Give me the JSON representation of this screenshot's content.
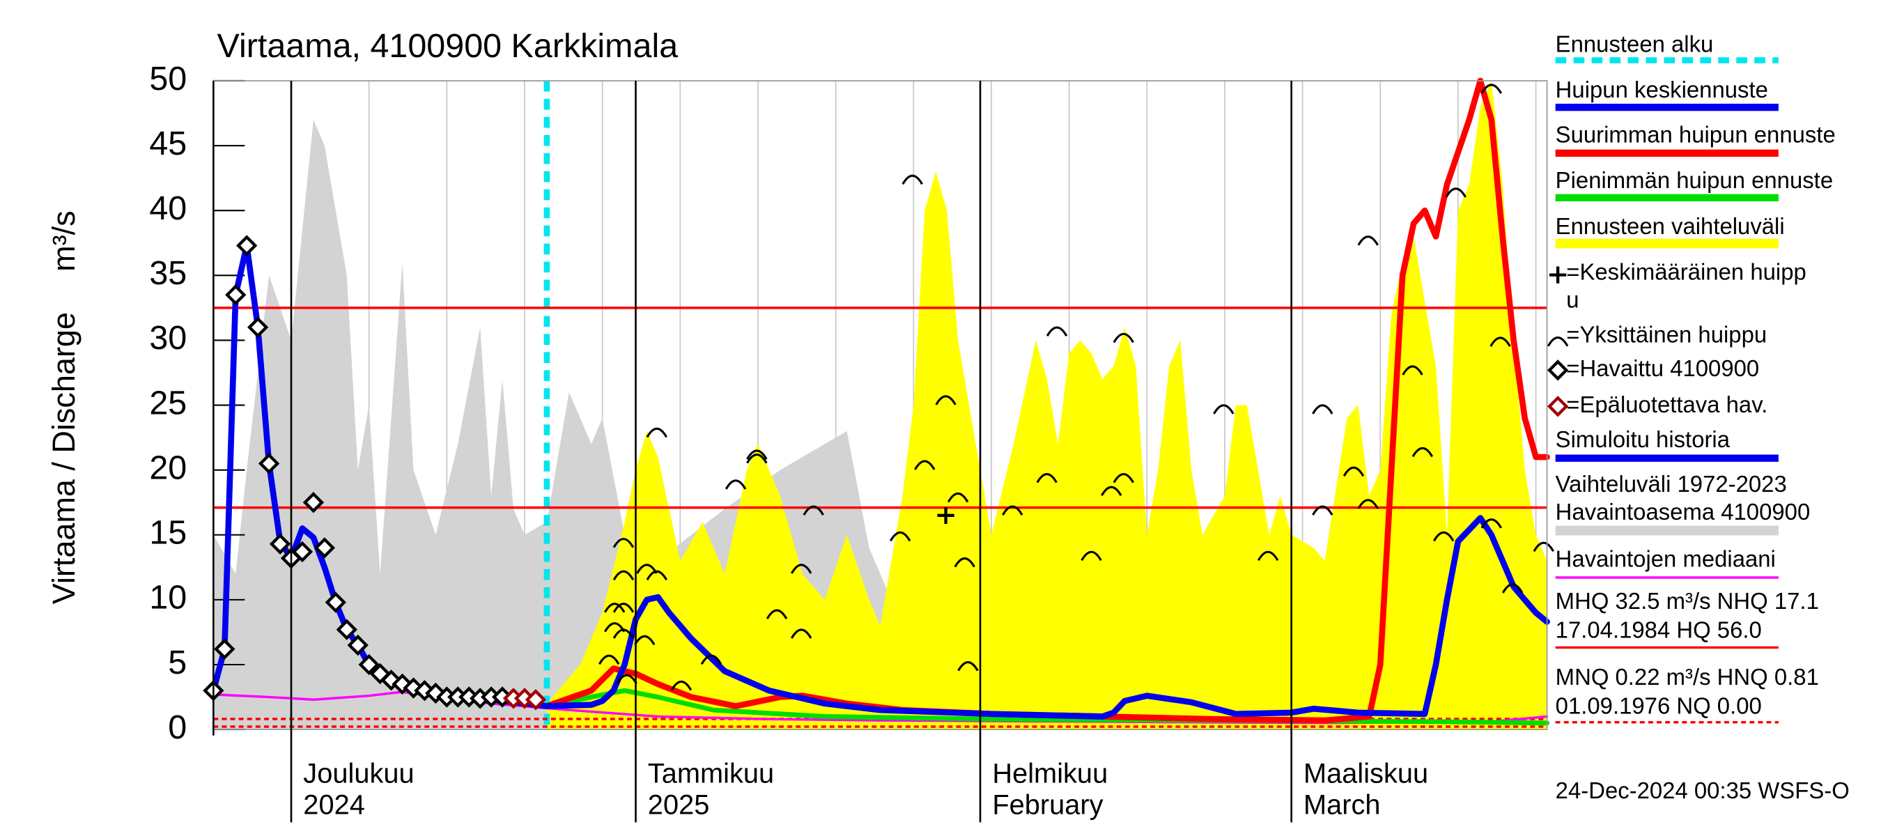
{
  "chart_data": {
    "type": "line",
    "title": "Virtaama, 4100900 Karkkimala",
    "ylabel": "Virtaama / Discharge",
    "yunit": "m³/s",
    "footer": "24-Dec-2024 00:35 WSFS-O",
    "xlim": [
      0,
      120
    ],
    "xticks": [
      {
        "value": 7,
        "label": "Joulukuu",
        "sublabel": "2024"
      },
      {
        "value": 38,
        "label": "Tammikuu",
        "sublabel": "2025"
      },
      {
        "value": 69,
        "label": "Helmikuu",
        "sublabel": "February"
      },
      {
        "value": 97,
        "label": "Maaliskuu",
        "sublabel": "March"
      }
    ],
    "minor_xticks": [
      7,
      14,
      21,
      28,
      35,
      42,
      49,
      56,
      63,
      70,
      77,
      84,
      91,
      98,
      105,
      112,
      119
    ],
    "ylim": [
      0,
      50
    ],
    "yticks": [
      0,
      5,
      10,
      15,
      20,
      25,
      30,
      35,
      40,
      45,
      50
    ],
    "forecast_start": {
      "name": "Ennusteen alku",
      "x": 30,
      "color": "#00e5ee"
    },
    "bands": [
      {
        "name": [
          "Vaihteluväli 1972-2023",
          " Havaintoasema 4100900"
        ],
        "color": "#d3d3d3",
        "x": [
          0,
          2,
          3,
          5,
          7,
          9,
          10,
          12,
          13,
          14,
          15,
          17,
          18,
          20,
          22,
          24,
          25,
          26,
          27,
          28,
          30,
          32,
          34,
          35,
          37,
          40,
          46,
          51,
          55,
          57,
          59,
          62,
          70,
          80,
          90,
          100,
          110,
          120
        ],
        "values": [
          15,
          12,
          20,
          35,
          30,
          47,
          45,
          35,
          20,
          25,
          12,
          36,
          20,
          15,
          22,
          31,
          18,
          27,
          17,
          15,
          16,
          26,
          22,
          24,
          15,
          13,
          17,
          20,
          22,
          23,
          14,
          8,
          6,
          8,
          7,
          5,
          10,
          12
        ]
      },
      {
        "name": "Ennusteen vaihteluväli",
        "color": "#ffff00",
        "x": [
          30,
          33,
          35,
          37,
          38,
          39,
          40,
          42,
          44,
          46,
          48,
          49,
          51,
          53,
          55,
          57,
          59,
          60,
          62,
          63,
          64,
          65,
          66,
          67,
          69,
          70,
          72,
          74,
          75,
          76,
          77,
          78,
          79,
          80,
          81,
          82,
          83,
          84,
          85,
          86,
          87,
          88,
          89,
          91,
          92,
          93,
          95,
          96,
          97,
          99,
          100,
          102,
          103,
          104,
          105,
          106,
          107,
          108,
          109,
          110,
          111,
          112,
          113,
          114,
          115,
          116,
          117,
          118,
          119,
          120
        ],
        "values": [
          2,
          5,
          9,
          16,
          20,
          23,
          21,
          13,
          16,
          12,
          20,
          22,
          18,
          12,
          10,
          15,
          10,
          8,
          18,
          25,
          40,
          43,
          40,
          30,
          20,
          15,
          22,
          30,
          27,
          22,
          29,
          30,
          29,
          27,
          28,
          31,
          28,
          15,
          20,
          28,
          30,
          20,
          15,
          18,
          25,
          25,
          15,
          18,
          15,
          14,
          13,
          24,
          25,
          18,
          20,
          32,
          36,
          38,
          33,
          28,
          15,
          40,
          42,
          48,
          50,
          42,
          30,
          20,
          15,
          13
        ]
      }
    ],
    "series": [
      {
        "name": "Simuloitu historia",
        "color": "#0000ee",
        "x": [
          0,
          1,
          2,
          3,
          4,
          5,
          6,
          7,
          8,
          9,
          10,
          11,
          12,
          13,
          14,
          15,
          16,
          17,
          18,
          20,
          22,
          24,
          26,
          28,
          30
        ],
        "values": [
          3,
          6.2,
          33.5,
          37.3,
          31,
          20.5,
          14.5,
          13.2,
          15.5,
          14.8,
          12.5,
          9.8,
          7.7,
          6.5,
          5,
          4.3,
          3.8,
          3.5,
          3.2,
          2.8,
          2.5,
          2.4,
          2.2,
          2,
          1.8
        ]
      },
      {
        "name": "Huipun keskiennuste",
        "color": "#0000ee",
        "x": [
          30,
          34,
          35,
          36,
          37,
          38,
          39,
          40,
          41,
          43,
          46,
          50,
          55,
          60,
          70,
          80,
          81,
          82,
          84,
          88,
          92,
          97,
          99,
          103,
          109,
          110,
          111,
          112,
          114,
          115,
          117,
          119,
          120
        ],
        "values": [
          1.8,
          1.9,
          2.2,
          3,
          5,
          8.5,
          10,
          10.2,
          9,
          7,
          4.5,
          3,
          2,
          1.5,
          1.2,
          1,
          1.3,
          2.2,
          2.6,
          2.1,
          1.2,
          1.3,
          1.6,
          1.3,
          1.2,
          5,
          10,
          14.5,
          16.3,
          15,
          11,
          9,
          8.3
        ]
      },
      {
        "name": "Suurimman huipun ennuste",
        "color": "#ff0000",
        "x": [
          30,
          34,
          36,
          38,
          40,
          43,
          47,
          51,
          53,
          57,
          62,
          70,
          80,
          90,
          100,
          104,
          105,
          106,
          107,
          108,
          109,
          110,
          111,
          113,
          114,
          115,
          116,
          117,
          118,
          119,
          120
        ],
        "values": [
          1.8,
          3,
          4.7,
          4.3,
          3.5,
          2.5,
          1.8,
          2.5,
          2.6,
          2,
          1.5,
          1.2,
          1,
          0.8,
          0.7,
          1,
          5,
          20,
          35,
          39,
          40,
          38,
          42,
          47,
          50,
          47,
          38,
          30,
          24,
          21,
          21
        ]
      },
      {
        "name": "Pienimmän huipun ennuste",
        "color": "#00dd00",
        "x": [
          30,
          34,
          37,
          40,
          45,
          55,
          70,
          90,
          110,
          120
        ],
        "values": [
          1.8,
          2.5,
          3,
          2.5,
          1.5,
          1,
          0.8,
          0.7,
          0.6,
          0.5
        ]
      },
      {
        "name": "Havaintojen mediaani",
        "color": "#ff00ff",
        "x": [
          0,
          5,
          9,
          14,
          17,
          20,
          25,
          32,
          40,
          50,
          60,
          80,
          100,
          115,
          120
        ],
        "values": [
          2.7,
          2.5,
          2.3,
          2.6,
          2.9,
          2.5,
          2,
          1.5,
          1,
          0.8,
          0.7,
          0.6,
          0.5,
          0.6,
          1
        ]
      }
    ],
    "points": [
      {
        "name": "=Havaittu 4100900",
        "marker": "diamond",
        "color": "#000000",
        "x": [
          0,
          1,
          2,
          3,
          4,
          5,
          6,
          7,
          8,
          9,
          10,
          11,
          12,
          13,
          14,
          15,
          16,
          17,
          18,
          19,
          20,
          21,
          22,
          23,
          24,
          25,
          26
        ],
        "values": [
          3,
          6.2,
          33.5,
          37.3,
          31,
          20.5,
          14.3,
          13.2,
          13.7,
          17.5,
          14,
          9.8,
          7.7,
          6.5,
          5,
          4.3,
          3.8,
          3.5,
          3.2,
          3,
          2.8,
          2.5,
          2.5,
          2.5,
          2.4,
          2.5,
          2.5
        ]
      },
      {
        "name": "=Epäluotettava hav.",
        "marker": "diamond",
        "color": "#a00000",
        "x": [
          27,
          28,
          29
        ],
        "values": [
          2.4,
          2.4,
          2.3
        ]
      },
      {
        "name": "=Yksittäinen huippu",
        "marker": "arc",
        "color": "#000000",
        "x": [
          36.9,
          36.9,
          36.1,
          36.9,
          36.1,
          36.9,
          35.6,
          37.2,
          39,
          39.9,
          39.9,
          38.8,
          44.8,
          42.1,
          47,
          48.9,
          48.9,
          50.7,
          52.9,
          52.9,
          54,
          61.8,
          62.9,
          64,
          65.9,
          67,
          67.6,
          67.9,
          71.9,
          75,
          75.9,
          79,
          80.8,
          81.9,
          81.9,
          90.9,
          94.9,
          99.8,
          99.8,
          102.6,
          103.9,
          103.9,
          107.9,
          108.8,
          110.7,
          111.8,
          115,
          115,
          115.8,
          116.9,
          119.7
        ],
        "values": [
          14.5,
          12,
          9.5,
          9.5,
          8,
          7.5,
          5.5,
          4,
          12.5,
          12,
          23,
          7,
          5.5,
          3.5,
          19,
          21.3,
          21,
          9,
          12.5,
          7.5,
          17,
          15,
          42.5,
          20.5,
          25.5,
          18,
          13,
          5,
          17,
          19.5,
          30.8,
          13.5,
          18.5,
          30.3,
          19.5,
          24.8,
          13.5,
          24.8,
          17,
          20,
          37.8,
          17.5,
          27.8,
          21.5,
          15,
          41.5,
          49.5,
          16,
          30,
          11,
          14.2
        ]
      },
      {
        "name": [
          "=Keskimääräinen huipp",
          "u"
        ],
        "marker": "plus",
        "color": "#000000",
        "x": [
          65.9
        ],
        "values": [
          16.5
        ]
      }
    ],
    "reference_lines": [
      {
        "label": [
          "MHQ 32.5 m³/s NHQ 17.1",
          "17.04.1984 HQ 56.0"
        ],
        "color": "#ff0000",
        "style": "solid",
        "values": [
          32.5,
          17.1
        ]
      },
      {
        "label": [
          "MNQ 0.22 m³/s HNQ 0.81",
          "01.09.1976 NQ 0.00"
        ],
        "color": "#ff0000",
        "style": "dashed",
        "values": [
          0.22,
          0.81
        ]
      }
    ]
  }
}
